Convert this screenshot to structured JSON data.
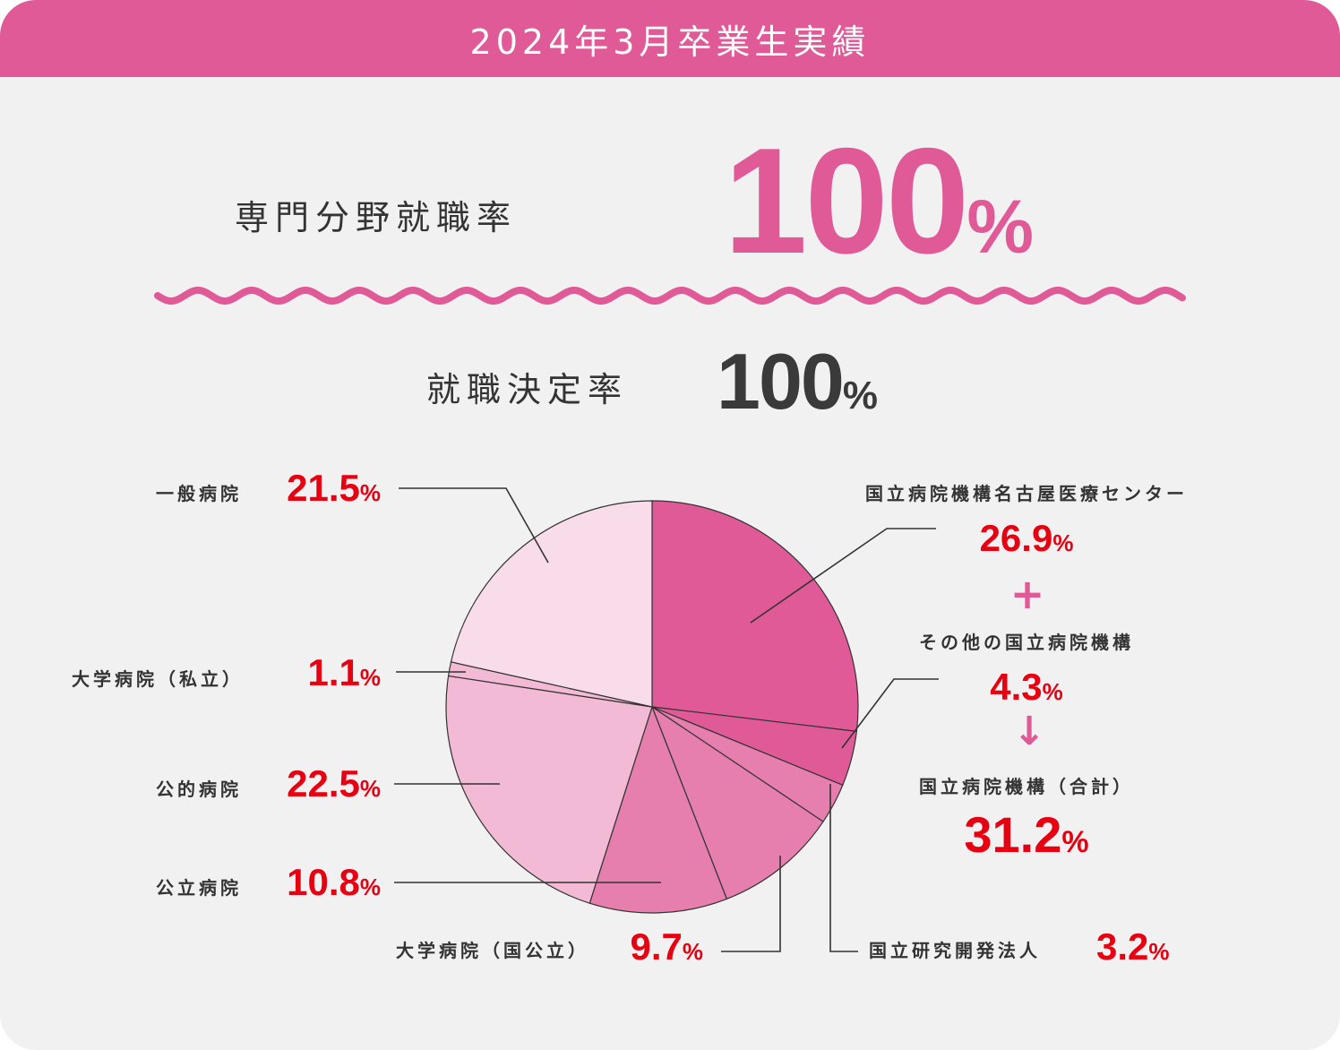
{
  "header": {
    "title": "2024年3月卒業生実績"
  },
  "specialty_rate": {
    "label": "専門分野就職率",
    "value": "100",
    "unit": "%"
  },
  "employment_rate": {
    "label": "就職決定率",
    "value": "100",
    "unit": "%"
  },
  "connectors": {
    "plus": "+",
    "arrow": "↓"
  },
  "colors": {
    "accent": "#e05a97",
    "value_red": "#e60012",
    "header_bg": "#e05a97"
  },
  "labels": {
    "general": {
      "name": "一般病院",
      "value": "21.5",
      "unit": "%"
    },
    "univ_private": {
      "name": "大学病院（私立）",
      "value": "1.1",
      "unit": "%"
    },
    "public_rel": {
      "name": "公的病院",
      "value": "22.5",
      "unit": "%"
    },
    "public": {
      "name": "公立病院",
      "value": "10.8",
      "unit": "%"
    },
    "univ_national": {
      "name": "大学病院（国公立）",
      "value": "9.7",
      "unit": "%"
    },
    "nagoya": {
      "name": "国立病院機構名古屋医療センター",
      "value": "26.9",
      "unit": "%"
    },
    "other_national": {
      "name": "その他の国立病院機構",
      "value": "4.3",
      "unit": "%"
    },
    "research": {
      "name": "国立研究開発法人",
      "value": "3.2",
      "unit": "%"
    },
    "national_total": {
      "name": "国立病院機構（合計）",
      "value": "31.2",
      "unit": "%"
    }
  },
  "chart_data": {
    "type": "pie",
    "start_angle": "12 o'clock",
    "direction": "clockwise",
    "unit": "%",
    "slices": [
      {
        "name": "国立病院機構名古屋医療センター",
        "value": 26.9,
        "color": "#e05a97"
      },
      {
        "name": "その他の国立病院機構",
        "value": 4.3,
        "color": "#e05a97"
      },
      {
        "name": "国立研究開発法人",
        "value": 3.2,
        "color": "#e77fae"
      },
      {
        "name": "大学病院（国公立）",
        "value": 9.7,
        "color": "#e77fae"
      },
      {
        "name": "公立病院",
        "value": 10.8,
        "color": "#e77fae"
      },
      {
        "name": "公的病院",
        "value": 22.5,
        "color": "#f2bad4"
      },
      {
        "name": "大学病院（私立）",
        "value": 1.1,
        "color": "#f2bad4"
      },
      {
        "name": "一般病院",
        "value": 21.5,
        "color": "#f9dce9"
      }
    ],
    "aggregate": {
      "name": "国立病院機構（合計）",
      "value": 31.2
    }
  }
}
